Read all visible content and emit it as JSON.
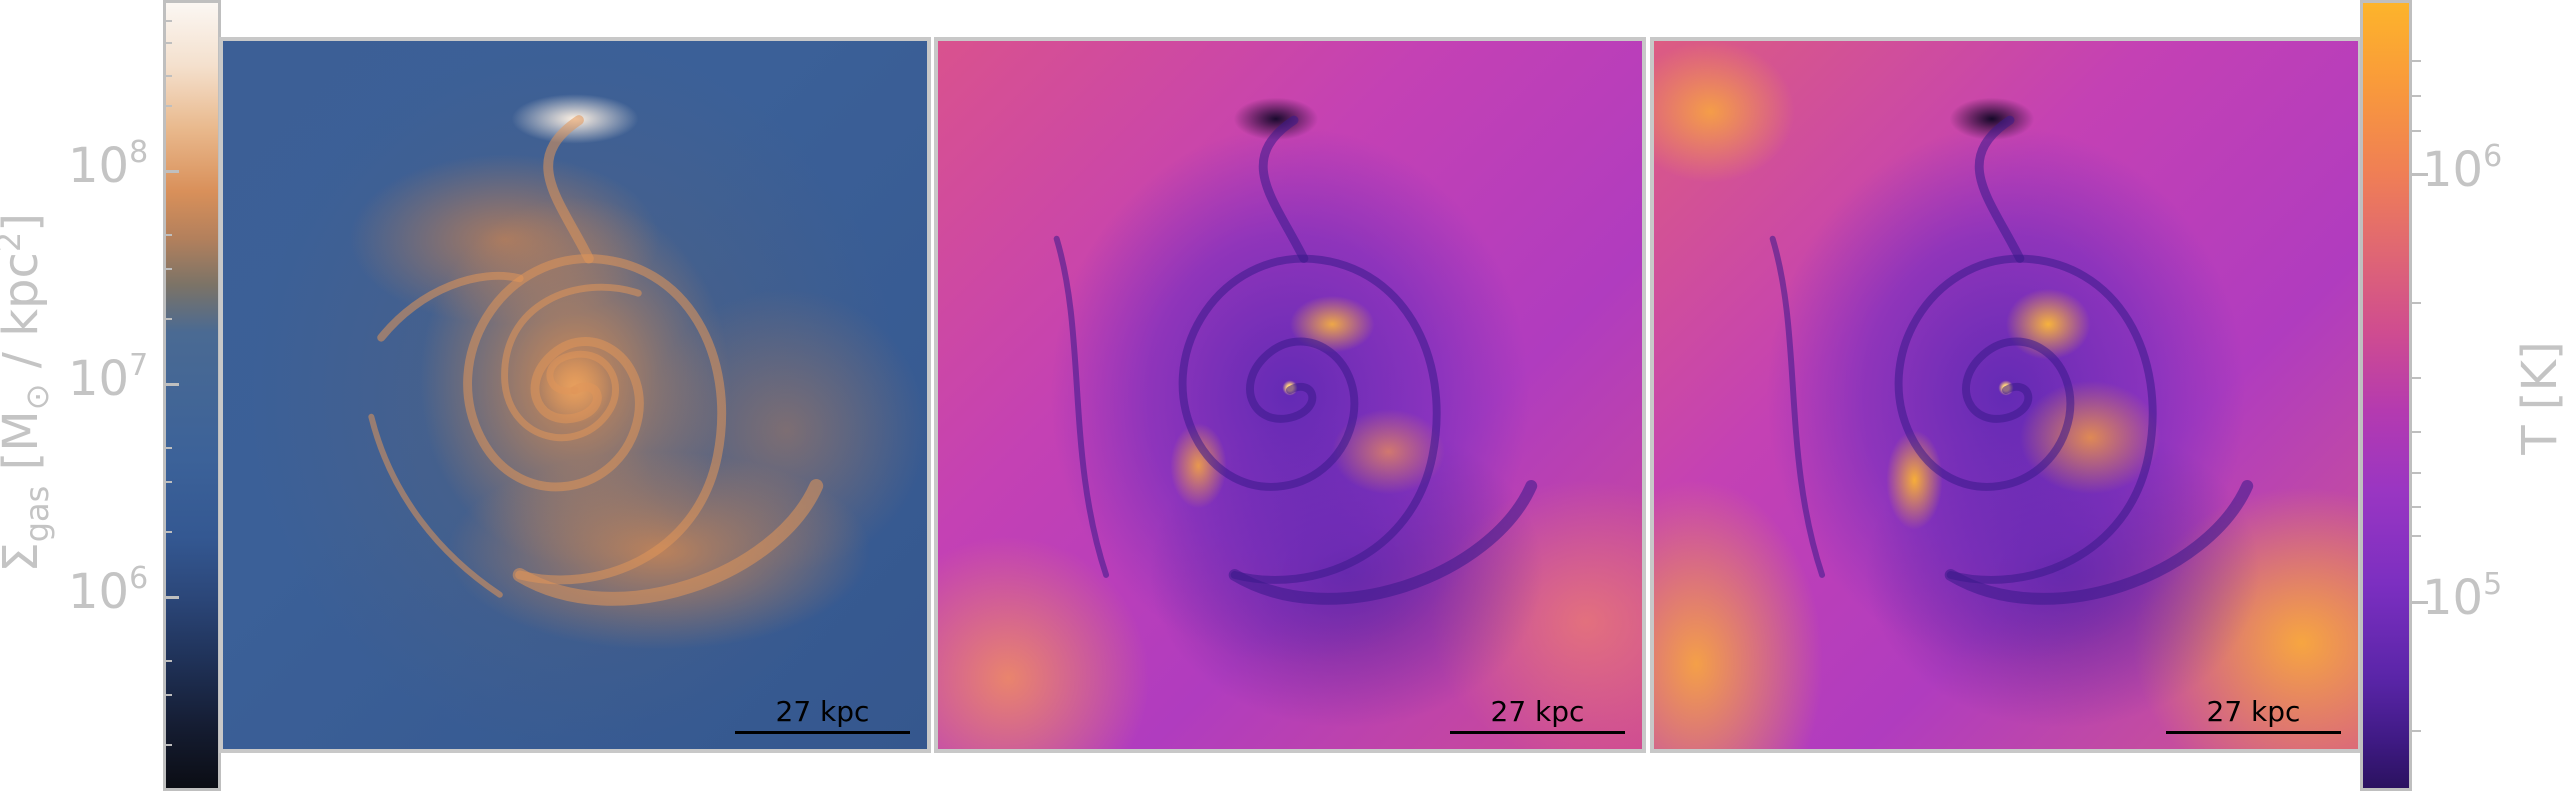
{
  "colorbar_left": {
    "label_main": "Σ",
    "label_sub": "gas",
    "label_rest_1": " [M",
    "label_sun": "⊙",
    "label_rest_2": " / kpc",
    "label_sup": "2",
    "label_rest_3": "]",
    "tick_labels": [
      {
        "base": "10",
        "exp": "8"
      },
      {
        "base": "10",
        "exp": "7"
      },
      {
        "base": "10",
        "exp": "6"
      }
    ],
    "colormap": [
      "#0b0d14",
      "#2b4678",
      "#3c6299",
      "#7b7367",
      "#d9905a",
      "#fbf7f3"
    ]
  },
  "colorbar_right": {
    "label": "T [K]",
    "tick_labels": [
      {
        "base": "10",
        "exp": "6"
      },
      {
        "base": "10",
        "exp": "5"
      }
    ],
    "colormap": [
      "#2b1260",
      "#7c2fc1",
      "#b43ab0",
      "#df6674",
      "#fdb42b"
    ]
  },
  "panels": [
    {
      "quantity": "gas surface density",
      "scalebar_label": "27 kpc"
    },
    {
      "quantity": "temperature",
      "scalebar_label": "27 kpc"
    },
    {
      "quantity": "temperature",
      "scalebar_label": "27 kpc"
    }
  ]
}
